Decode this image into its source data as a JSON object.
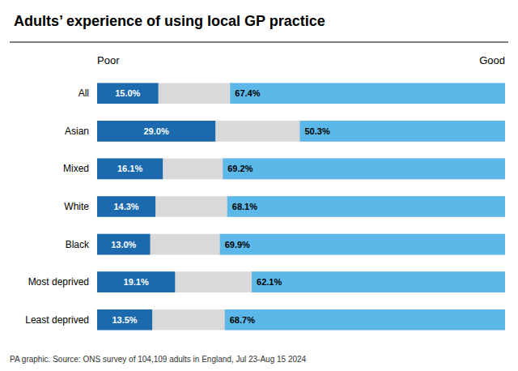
{
  "chart_data": {
    "type": "bar",
    "orientation": "horizontal",
    "title": "Adults’ experience of using local GP practice",
    "annotations": [
      "PA graphic. Source: ONS survey of 104,109 adults in England, Jul 23-Aug 15 2024"
    ],
    "categories": [
      "All",
      "Asian",
      "Mixed",
      "White",
      "Black",
      "Most deprived",
      "Least deprived"
    ],
    "series": [
      {
        "name": "Poor",
        "color": "#1a6aad",
        "values": [
          15.0,
          29.0,
          16.1,
          14.3,
          13.0,
          19.1,
          13.5
        ],
        "value_labels": [
          "15.0%",
          "29.0%",
          "16.1%",
          "14.3%",
          "13.0%",
          "19.1%",
          "13.5%"
        ]
      },
      {
        "name": "Good",
        "color": "#5bb8e8",
        "values": [
          67.4,
          50.3,
          69.2,
          68.1,
          69.9,
          62.1,
          68.7
        ],
        "value_labels": [
          "67.4%",
          "50.3%",
          "69.2%",
          "68.1%",
          "69.9%",
          "62.1%",
          "68.7%"
        ]
      }
    ],
    "color": "#d9d9d9",
    "xlim": [
      0,
      100
    ],
    "data_labels": true,
    "tick_labels": "y",
    "grid": false
  }
}
